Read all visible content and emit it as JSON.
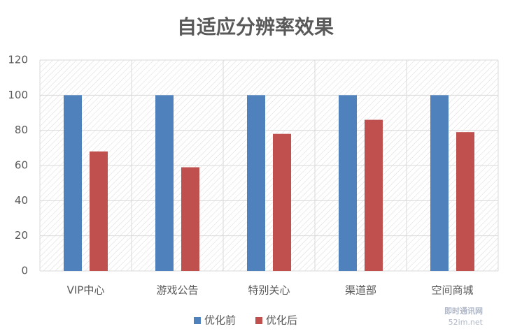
{
  "chart_data": {
    "type": "bar",
    "title": "自适应分辨率效果",
    "categories": [
      "VIP中心",
      "游戏公告",
      "特别关心",
      "渠道部",
      "空间商城"
    ],
    "series": [
      {
        "name": "优化前",
        "color": "#4f81bd",
        "values": [
          100,
          100,
          100,
          100,
          100
        ]
      },
      {
        "name": "优化后",
        "color": "#c0504d",
        "values": [
          68,
          59,
          78,
          86,
          79
        ]
      }
    ],
    "ylim": [
      0,
      120
    ],
    "yticks": [
      0,
      20,
      40,
      60,
      80,
      100,
      120
    ],
    "grid": true,
    "legend": "bottom"
  },
  "watermark": {
    "name": "即时通讯网",
    "url": "52im.net"
  }
}
